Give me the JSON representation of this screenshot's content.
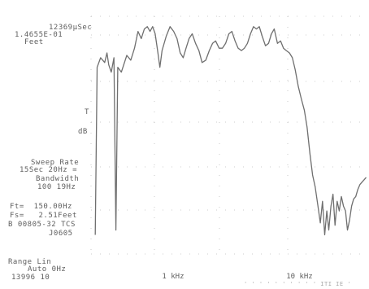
{
  "header": {
    "line1": "12369μSec",
    "line2": "1.4655E-01",
    "line3": "Feet"
  },
  "sweep": {
    "line1": "Sweep Rate",
    "line2": "15Sec 20Hz =",
    "line3": "Bandwidth",
    "line4": "100 19Hz"
  },
  "params": {
    "line1": "Ft=  150.00Hz",
    "line2": "Fs=   2.51Feet",
    "line3": "B 00805-32 TCS",
    "line4": "J0605"
  },
  "range": {
    "line1": "Range Lin",
    "line2": "Auto 0Hz",
    "line3": "13996 10"
  },
  "marker": {
    "tick": "T",
    "label": "dB"
  },
  "footer_faint": "' ' ' ' ' ' ' ' ' ' ITI IE '",
  "colors": {
    "trace": "#6f6f6f",
    "grid": "#bdbdbd",
    "text": "#5e5e5e"
  },
  "chart_data": {
    "type": "line",
    "title": "",
    "xlabel": "",
    "ylabel": "",
    "x_scale": "log",
    "x_ticks": [
      {
        "value": 1000,
        "label": "1 kHz"
      },
      {
        "value": 10000,
        "label": "10 kHz"
      }
    ],
    "xlim": [
      260,
      45000
    ],
    "ylim": [
      0,
      100
    ],
    "grid": true,
    "legend": "none",
    "series": [
      {
        "values": [
          [
            290,
            8
          ],
          [
            300,
            78
          ],
          [
            320,
            82
          ],
          [
            345,
            80
          ],
          [
            360,
            84
          ],
          [
            372,
            79
          ],
          [
            390,
            76
          ],
          [
            410,
            82
          ],
          [
            425,
            10
          ],
          [
            440,
            78
          ],
          [
            470,
            76
          ],
          [
            520,
            83
          ],
          [
            560,
            81
          ],
          [
            600,
            86
          ],
          [
            640,
            93
          ],
          [
            680,
            90
          ],
          [
            720,
            94
          ],
          [
            760,
            95
          ],
          [
            800,
            93
          ],
          [
            840,
            95
          ],
          [
            880,
            92
          ],
          [
            920,
            85
          ],
          [
            960,
            78
          ],
          [
            1000,
            85
          ],
          [
            1080,
            91
          ],
          [
            1160,
            95
          ],
          [
            1240,
            93
          ],
          [
            1320,
            90
          ],
          [
            1400,
            84
          ],
          [
            1480,
            82
          ],
          [
            1560,
            86
          ],
          [
            1650,
            90
          ],
          [
            1750,
            92
          ],
          [
            1860,
            88
          ],
          [
            1980,
            85
          ],
          [
            2100,
            80
          ],
          [
            2250,
            81
          ],
          [
            2400,
            85
          ],
          [
            2550,
            88
          ],
          [
            2700,
            89
          ],
          [
            2880,
            86
          ],
          [
            3060,
            86
          ],
          [
            3250,
            88
          ],
          [
            3450,
            92
          ],
          [
            3650,
            93
          ],
          [
            3870,
            89
          ],
          [
            4100,
            86
          ],
          [
            4350,
            85
          ],
          [
            4600,
            86
          ],
          [
            4870,
            88
          ],
          [
            5150,
            92
          ],
          [
            5450,
            95
          ],
          [
            5750,
            94
          ],
          [
            6060,
            95
          ],
          [
            6400,
            91
          ],
          [
            6800,
            87
          ],
          [
            7200,
            88
          ],
          [
            7600,
            92
          ],
          [
            8000,
            94
          ],
          [
            8500,
            88
          ],
          [
            9000,
            89
          ],
          [
            9500,
            86
          ],
          [
            10000,
            85
          ],
          [
            10600,
            84
          ],
          [
            11200,
            82
          ],
          [
            11800,
            77
          ],
          [
            12500,
            70
          ],
          [
            13200,
            65
          ],
          [
            14000,
            60
          ],
          [
            14700,
            53
          ],
          [
            15500,
            42
          ],
          [
            16300,
            33
          ],
          [
            17100,
            28
          ],
          [
            18000,
            20
          ],
          [
            18800,
            13
          ],
          [
            19600,
            22
          ],
          [
            20400,
            8
          ],
          [
            21200,
            18
          ],
          [
            22000,
            10
          ],
          [
            22900,
            20
          ],
          [
            23800,
            25
          ],
          [
            24700,
            12
          ],
          [
            25700,
            22
          ],
          [
            26700,
            18
          ],
          [
            27800,
            24
          ],
          [
            28900,
            20
          ],
          [
            30000,
            18
          ],
          [
            31100,
            10
          ],
          [
            32300,
            14
          ],
          [
            33600,
            20
          ],
          [
            34900,
            23
          ],
          [
            36300,
            24
          ],
          [
            37700,
            27
          ],
          [
            39200,
            29
          ],
          [
            40700,
            30
          ],
          [
            42300,
            31
          ],
          [
            44000,
            32
          ]
        ]
      }
    ]
  }
}
